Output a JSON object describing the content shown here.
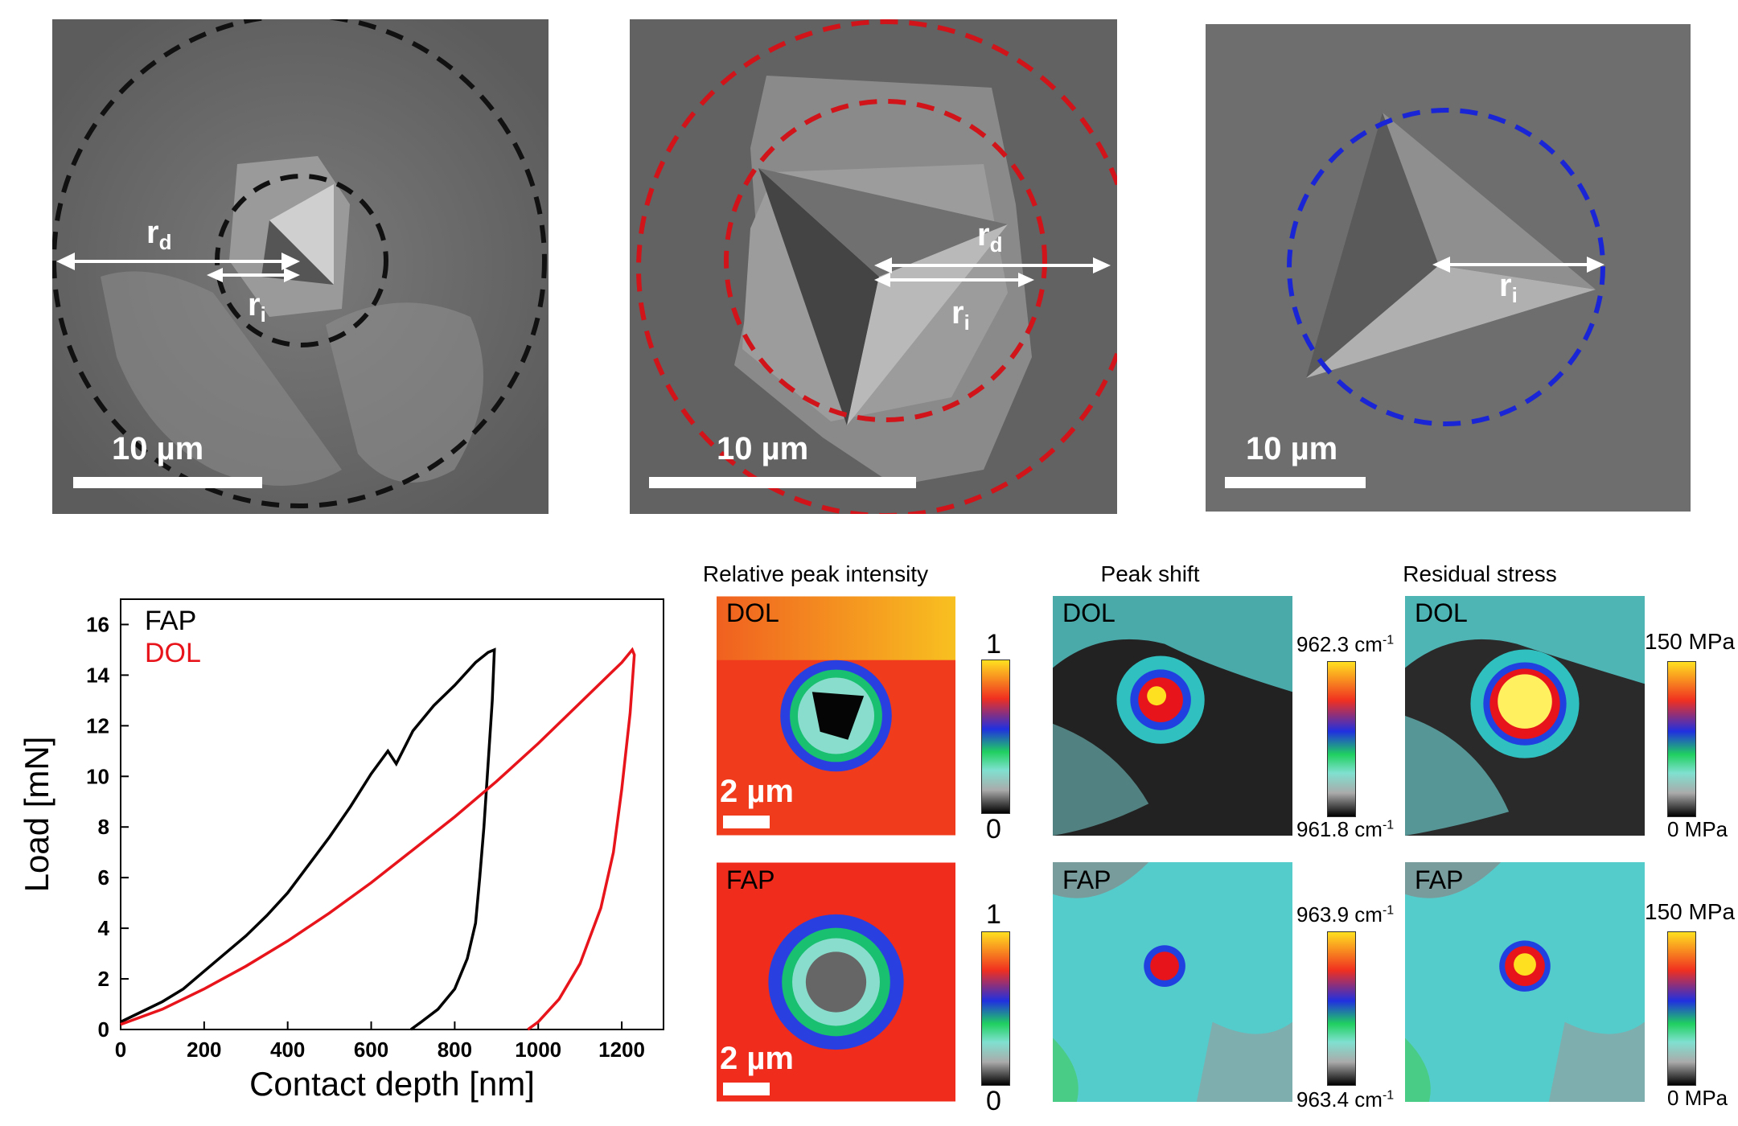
{
  "sem_panels": [
    {
      "scale_label": "10 µm",
      "label_rd": "r",
      "label_rd_sub": "d",
      "label_ri": "r",
      "label_ri_sub": "i",
      "circle_color": "#111111"
    },
    {
      "scale_label": "10 µm",
      "label_rd": "r",
      "label_rd_sub": "d",
      "label_ri": "r",
      "label_ri_sub": "i",
      "circle_color": "#d0141a"
    },
    {
      "scale_label": "10 µm",
      "label_ri": "r",
      "label_ri_sub": "i",
      "circle_color": "#1a25d6"
    }
  ],
  "map_titles": [
    "Relative peak intensity",
    "Peak shift",
    "Residual stress"
  ],
  "maps": {
    "row1_tag": "DOL",
    "row2_tag": "FAP",
    "scale_label": "2 µm",
    "intensity_colorbar": {
      "top": "1",
      "bottom": "0"
    },
    "shift_colorbar_dol": {
      "top": "962.3 cm",
      "bottom": "961.8 cm",
      "sup": "-1"
    },
    "shift_colorbar_fap": {
      "top": "963.9 cm",
      "bottom": "963.4 cm",
      "sup": "-1"
    },
    "stress_colorbar": {
      "top": "150 MPa",
      "bottom": "0 MPa"
    }
  },
  "chart_data": {
    "type": "line",
    "xlabel": "Contact depth [nm]",
    "ylabel": "Load [mN]",
    "xlim": [
      0,
      1300
    ],
    "ylim": [
      0,
      17
    ],
    "xticks": [
      0,
      200,
      400,
      600,
      800,
      1000,
      1200
    ],
    "yticks": [
      0,
      2,
      4,
      6,
      8,
      10,
      12,
      14,
      16
    ],
    "legend_position": "top-left",
    "series": [
      {
        "name": "FAP",
        "color": "#000000",
        "x": [
          0,
          50,
          100,
          150,
          200,
          250,
          300,
          350,
          400,
          450,
          500,
          550,
          600,
          640,
          660,
          700,
          750,
          800,
          850,
          880,
          895,
          890,
          880,
          870,
          860,
          850,
          830,
          800,
          760,
          720,
          695
        ],
        "y": [
          0.3,
          0.7,
          1.1,
          1.6,
          2.3,
          3.0,
          3.7,
          4.5,
          5.4,
          6.5,
          7.6,
          8.8,
          10.1,
          11.0,
          10.5,
          11.8,
          12.8,
          13.6,
          14.5,
          14.9,
          15.0,
          13.0,
          10.5,
          8.0,
          6.0,
          4.2,
          2.8,
          1.6,
          0.8,
          0.3,
          0.0
        ]
      },
      {
        "name": "DOL",
        "color": "#e8141b",
        "x": [
          0,
          100,
          200,
          300,
          400,
          500,
          600,
          700,
          800,
          900,
          1000,
          1100,
          1200,
          1225,
          1230,
          1220,
          1200,
          1180,
          1150,
          1100,
          1050,
          1000,
          975
        ],
        "y": [
          0.2,
          0.8,
          1.6,
          2.5,
          3.5,
          4.6,
          5.8,
          7.1,
          8.4,
          9.8,
          11.3,
          12.9,
          14.5,
          15.0,
          14.8,
          12.5,
          9.5,
          7.0,
          4.8,
          2.6,
          1.2,
          0.3,
          0.0
        ]
      }
    ]
  }
}
